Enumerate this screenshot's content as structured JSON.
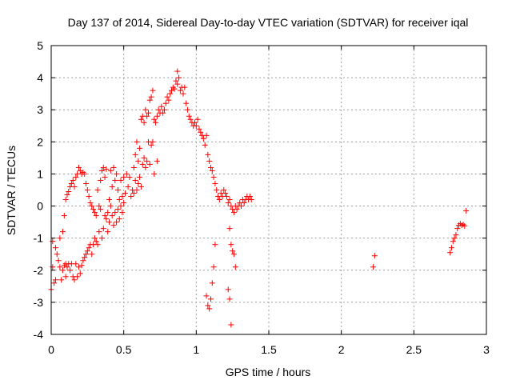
{
  "chart_data": {
    "type": "scatter",
    "title": "Day 137 of 2014, Sidereal Day-to-day VTEC variation (SDTVAR) for receiver iqal",
    "xlabel": "GPS time / hours",
    "ylabel": "SDTVAR / TECUs",
    "xlim": [
      0,
      3
    ],
    "ylim": [
      -4,
      5
    ],
    "xticks": [
      0,
      0.5,
      1,
      1.5,
      2,
      2.5,
      3
    ],
    "xtick_labels": [
      "0",
      "0.5",
      "1",
      "1.5",
      "2",
      "2.5",
      "3"
    ],
    "yticks": [
      -4,
      -3,
      -2,
      -1,
      0,
      1,
      2,
      3,
      4,
      5
    ],
    "ytick_labels": [
      "-4",
      "-3",
      "-2",
      "-1",
      "0",
      "1",
      "2",
      "3",
      "4",
      "5"
    ],
    "grid": true,
    "marker": "+",
    "color": "#ff0000",
    "series": [
      {
        "name": "iqal",
        "points": [
          [
            0.0,
            -2.6
          ],
          [
            0.01,
            -1.1
          ],
          [
            0.01,
            -1.9
          ],
          [
            0.02,
            -2.4
          ],
          [
            0.03,
            -1.3
          ],
          [
            0.03,
            -2.3
          ],
          [
            0.04,
            -1.5
          ],
          [
            0.05,
            -1.7
          ],
          [
            0.06,
            -1.9
          ],
          [
            0.06,
            -1.0
          ],
          [
            0.07,
            -2.3
          ],
          [
            0.08,
            -2.0
          ],
          [
            0.08,
            -0.8
          ],
          [
            0.09,
            -1.85
          ],
          [
            0.09,
            -0.3
          ],
          [
            0.1,
            -2.2
          ],
          [
            0.1,
            -1.8
          ],
          [
            0.1,
            0.2
          ],
          [
            0.11,
            -1.9
          ],
          [
            0.11,
            0.35
          ],
          [
            0.12,
            -1.8
          ],
          [
            0.12,
            0.45
          ],
          [
            0.13,
            -2.0
          ],
          [
            0.13,
            0.6
          ],
          [
            0.14,
            -1.8
          ],
          [
            0.14,
            0.7
          ],
          [
            0.15,
            -2.2
          ],
          [
            0.15,
            0.8
          ],
          [
            0.16,
            -2.3
          ],
          [
            0.16,
            0.6
          ],
          [
            0.17,
            -1.8
          ],
          [
            0.17,
            0.9
          ],
          [
            0.18,
            -2.2
          ],
          [
            0.18,
            1.0
          ],
          [
            0.19,
            -1.9
          ],
          [
            0.19,
            1.2
          ],
          [
            0.2,
            -2.1
          ],
          [
            0.2,
            1.1
          ],
          [
            0.21,
            -1.85
          ],
          [
            0.21,
            1.0
          ],
          [
            0.22,
            -1.7
          ],
          [
            0.22,
            1.05
          ],
          [
            0.23,
            -1.6
          ],
          [
            0.23,
            1.0
          ],
          [
            0.24,
            -1.5
          ],
          [
            0.24,
            0.7
          ],
          [
            0.25,
            -1.4
          ],
          [
            0.25,
            0.5
          ],
          [
            0.26,
            -1.3
          ],
          [
            0.26,
            0.3
          ],
          [
            0.27,
            -1.2
          ],
          [
            0.27,
            0.1
          ],
          [
            0.28,
            -1.5
          ],
          [
            0.28,
            0.0
          ],
          [
            0.29,
            -1.2
          ],
          [
            0.29,
            -0.1
          ],
          [
            0.3,
            -1.0
          ],
          [
            0.3,
            -0.2
          ],
          [
            0.31,
            -1.1
          ],
          [
            0.31,
            -0.3
          ],
          [
            0.32,
            -1.2
          ],
          [
            0.32,
            0.5
          ],
          [
            0.33,
            0.0
          ],
          [
            0.33,
            -0.8
          ],
          [
            0.34,
            0.8
          ],
          [
            0.34,
            -0.1
          ],
          [
            0.35,
            1.1
          ],
          [
            0.35,
            -1.0
          ],
          [
            0.36,
            -0.7
          ],
          [
            0.36,
            1.2
          ],
          [
            0.37,
            0.9
          ],
          [
            0.37,
            -0.3
          ],
          [
            0.38,
            -0.4
          ],
          [
            0.38,
            1.15
          ],
          [
            0.39,
            -0.2
          ],
          [
            0.39,
            -0.8
          ],
          [
            0.4,
            0.2
          ],
          [
            0.4,
            -0.5
          ],
          [
            0.41,
            0.0
          ],
          [
            0.41,
            1.1
          ],
          [
            0.42,
            -0.3
          ],
          [
            0.42,
            0.6
          ],
          [
            0.43,
            -0.6
          ],
          [
            0.43,
            1.2
          ],
          [
            0.44,
            0.8
          ],
          [
            0.44,
            -0.2
          ],
          [
            0.45,
            1.0
          ],
          [
            0.45,
            -0.5
          ],
          [
            0.46,
            0.5
          ],
          [
            0.46,
            -0.1
          ],
          [
            0.47,
            0.2
          ],
          [
            0.47,
            -0.4
          ],
          [
            0.48,
            0.0
          ],
          [
            0.48,
            0.8
          ],
          [
            0.49,
            0.3
          ],
          [
            0.49,
            -0.2
          ],
          [
            0.5,
            0.1
          ],
          [
            0.5,
            0.9
          ],
          [
            0.51,
            0.4
          ],
          [
            0.52,
            1.0
          ],
          [
            0.53,
            0.6
          ],
          [
            0.54,
            0.9
          ],
          [
            0.55,
            0.3
          ],
          [
            0.56,
            0.5
          ],
          [
            0.57,
            0.4
          ],
          [
            0.57,
            1.2
          ],
          [
            0.58,
            0.8
          ],
          [
            0.58,
            1.6
          ],
          [
            0.59,
            0.5
          ],
          [
            0.59,
            2.0
          ],
          [
            0.6,
            0.7
          ],
          [
            0.6,
            1.4
          ],
          [
            0.61,
            0.9
          ],
          [
            0.61,
            1.8
          ],
          [
            0.62,
            2.7
          ],
          [
            0.62,
            0.6
          ],
          [
            0.63,
            2.8
          ],
          [
            0.63,
            1.3
          ],
          [
            0.64,
            1.5
          ],
          [
            0.64,
            2.6
          ],
          [
            0.65,
            3.0
          ],
          [
            0.65,
            1.2
          ],
          [
            0.66,
            1.4
          ],
          [
            0.66,
            2.8
          ],
          [
            0.67,
            2.9
          ],
          [
            0.67,
            2.0
          ],
          [
            0.68,
            3.3
          ],
          [
            0.68,
            1.3
          ],
          [
            0.69,
            1.9
          ],
          [
            0.69,
            3.4
          ],
          [
            0.7,
            3.6
          ],
          [
            0.7,
            2.0
          ],
          [
            0.71,
            2.7
          ],
          [
            0.71,
            1.0
          ],
          [
            0.72,
            2.6
          ],
          [
            0.73,
            2.8
          ],
          [
            0.73,
            1.4
          ],
          [
            0.74,
            3.0
          ],
          [
            0.75,
            2.9
          ],
          [
            0.76,
            3.1
          ],
          [
            0.77,
            2.9
          ],
          [
            0.78,
            3.0
          ],
          [
            0.79,
            3.2
          ],
          [
            0.8,
            3.4
          ],
          [
            0.81,
            3.3
          ],
          [
            0.82,
            3.5
          ],
          [
            0.83,
            3.6
          ],
          [
            0.84,
            3.7
          ],
          [
            0.85,
            3.65
          ],
          [
            0.86,
            3.9
          ],
          [
            0.87,
            4.2
          ],
          [
            0.87,
            3.8
          ],
          [
            0.88,
            4.0
          ],
          [
            0.89,
            3.6
          ],
          [
            0.9,
            3.7
          ],
          [
            0.91,
            3.5
          ],
          [
            0.92,
            3.7
          ],
          [
            0.93,
            3.2
          ],
          [
            0.94,
            3.0
          ],
          [
            0.95,
            2.8
          ],
          [
            0.96,
            2.7
          ],
          [
            0.97,
            2.6
          ],
          [
            0.98,
            2.5
          ],
          [
            0.99,
            2.6
          ],
          [
            1.0,
            2.5
          ],
          [
            1.01,
            2.7
          ],
          [
            1.02,
            2.4
          ],
          [
            1.03,
            2.3
          ],
          [
            1.04,
            2.2
          ],
          [
            1.05,
            2.1
          ],
          [
            1.06,
            1.9
          ],
          [
            1.07,
            2.2
          ],
          [
            1.08,
            1.6
          ],
          [
            1.09,
            1.4
          ],
          [
            1.1,
            1.2
          ],
          [
            1.11,
            1.1
          ],
          [
            1.12,
            0.9
          ],
          [
            1.13,
            0.7
          ],
          [
            1.14,
            0.5
          ],
          [
            1.15,
            0.3
          ],
          [
            1.16,
            0.2
          ],
          [
            1.17,
            0.4
          ],
          [
            1.18,
            0.3
          ],
          [
            1.19,
            0.5
          ],
          [
            1.2,
            0.4
          ],
          [
            1.21,
            0.3
          ],
          [
            1.22,
            0.1
          ],
          [
            1.23,
            0.2
          ],
          [
            1.24,
            0.0
          ],
          [
            1.25,
            -0.1
          ],
          [
            1.26,
            -0.2
          ],
          [
            1.27,
            0.0
          ],
          [
            1.28,
            -0.1
          ],
          [
            1.29,
            0.0
          ],
          [
            1.3,
            0.1
          ],
          [
            1.31,
            0.0
          ],
          [
            1.32,
            0.2
          ],
          [
            1.33,
            0.1
          ],
          [
            1.34,
            0.2
          ],
          [
            1.35,
            0.3
          ],
          [
            1.36,
            0.2
          ],
          [
            1.37,
            0.3
          ],
          [
            1.38,
            0.2
          ],
          [
            1.07,
            -2.8
          ],
          [
            1.08,
            -3.1
          ],
          [
            1.09,
            -3.2
          ],
          [
            1.1,
            -2.9
          ],
          [
            1.11,
            -2.4
          ],
          [
            1.12,
            -1.9
          ],
          [
            1.13,
            -1.2
          ],
          [
            1.23,
            -0.7
          ],
          [
            1.24,
            -1.2
          ],
          [
            1.25,
            -1.4
          ],
          [
            1.26,
            -1.5
          ],
          [
            1.27,
            -1.9
          ],
          [
            1.22,
            -2.6
          ],
          [
            1.23,
            -2.9
          ],
          [
            1.24,
            -3.7
          ],
          [
            2.22,
            -1.9
          ],
          [
            2.23,
            -1.55
          ],
          [
            2.75,
            -1.45
          ],
          [
            2.76,
            -1.3
          ],
          [
            2.77,
            -1.1
          ],
          [
            2.78,
            -1.0
          ],
          [
            2.79,
            -0.9
          ],
          [
            2.8,
            -0.7
          ],
          [
            2.81,
            -0.6
          ],
          [
            2.82,
            -0.55
          ],
          [
            2.83,
            -0.6
          ],
          [
            2.84,
            -0.58
          ],
          [
            2.85,
            -0.62
          ],
          [
            2.86,
            -0.15
          ]
        ]
      }
    ]
  }
}
